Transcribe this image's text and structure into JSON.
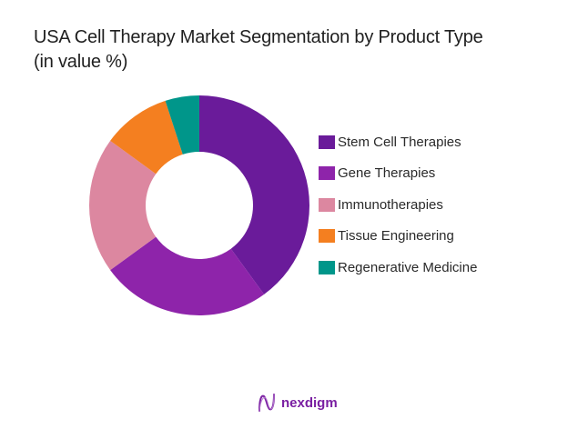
{
  "title": {
    "line1": "USA Cell Therapy Market Segmentation by Product Type",
    "line2": "(in value %)"
  },
  "chart_data": {
    "type": "pie",
    "variant": "donut",
    "title": "USA Cell Therapy Market Segmentation by Product Type (in value %)",
    "categories": [
      "Stem Cell Therapies",
      "Gene Therapies",
      "Immunotherapies",
      "Tissue Engineering",
      "Regenerative Medicine"
    ],
    "values": [
      40,
      25,
      20,
      10,
      5
    ],
    "colors": [
      "#6a1b9a",
      "#8e24aa",
      "#dc87a0",
      "#f47f20",
      "#00968a"
    ],
    "unit": "%",
    "legend_position": "right"
  },
  "legend": {
    "items": [
      {
        "label": "Stem Cell Therapies",
        "color": "#6a1b9a"
      },
      {
        "label": "Gene Therapies",
        "color": "#8e24aa"
      },
      {
        "label": "Immunotherapies",
        "color": "#dc87a0"
      },
      {
        "label": "Tissue Engineering",
        "color": "#f47f20"
      },
      {
        "label": "Regenerative Medicine",
        "color": "#00968a"
      }
    ]
  },
  "branding": {
    "logo_text": "nexdigm",
    "logo_icon": "nexdigm-wave-icon",
    "color": "#7a1fa2"
  }
}
